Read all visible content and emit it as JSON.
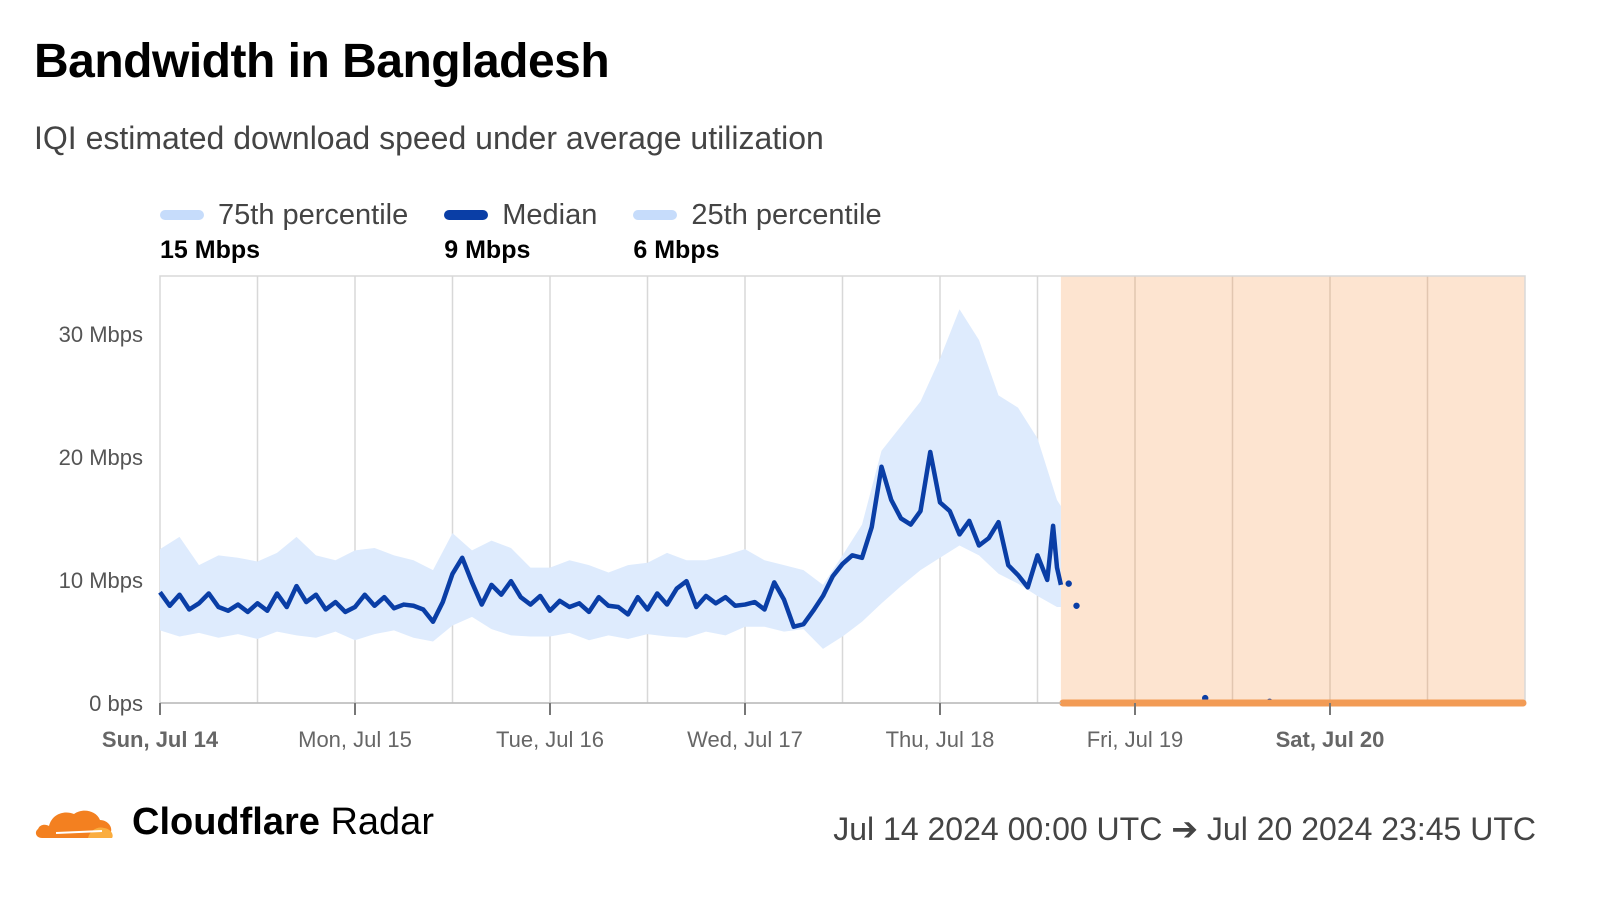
{
  "header": {
    "title": "Bandwidth in Bangladesh",
    "subtitle": "IQI estimated download speed under average utilization"
  },
  "legend": [
    {
      "label": "75th percentile",
      "value": "15 Mbps",
      "color": "#c6dcfb"
    },
    {
      "label": "Median",
      "value": "9 Mbps",
      "color": "#0a3ea6"
    },
    {
      "label": "25th percentile",
      "value": "6 Mbps",
      "color": "#c6dcfb"
    }
  ],
  "footer": {
    "brand_bold": "Cloudflare",
    "brand_regular": "Radar",
    "date_range": "Jul 14 2024 00:00 UTC ➔ Jul 20 2024 23:45 UTC"
  },
  "colors": {
    "median": "#0a3ea6",
    "band": "#deebfd",
    "outage_fill": "#fde4d0",
    "outage_line": "#f29b55",
    "grid": "#d8d8d8",
    "logo_orange": "#f38020"
  },
  "chart_data": {
    "type": "area",
    "x_unit": "days since Jul 14 2024 00:00 UTC",
    "y_unit": "Mbps",
    "ylim": [
      0,
      35
    ],
    "xlim": [
      0,
      7
    ],
    "y_ticks": [
      {
        "value": 0,
        "label": "0 bps"
      },
      {
        "value": 10,
        "label": "10 Mbps"
      },
      {
        "value": 20,
        "label": "20 Mbps"
      },
      {
        "value": 30,
        "label": "30 Mbps"
      }
    ],
    "x_ticks": [
      {
        "value": 0,
        "label": "Sun, Jul 14",
        "bold": true
      },
      {
        "value": 1,
        "label": "Mon, Jul 15",
        "bold": false
      },
      {
        "value": 2,
        "label": "Tue, Jul 16",
        "bold": false
      },
      {
        "value": 3,
        "label": "Wed, Jul 17",
        "bold": false
      },
      {
        "value": 4,
        "label": "Thu, Jul 18",
        "bold": false
      },
      {
        "value": 5,
        "label": "Fri, Jul 19",
        "bold": false
      },
      {
        "value": 6,
        "label": "Sat, Jul 20",
        "bold": true
      }
    ],
    "grid": true,
    "outage_region": [
      4.62,
      7.0
    ],
    "median_series": {
      "name": "Median",
      "x": [
        0,
        0.05,
        0.1,
        0.15,
        0.2,
        0.25,
        0.3,
        0.35,
        0.4,
        0.45,
        0.5,
        0.55,
        0.6,
        0.65,
        0.7,
        0.75,
        0.8,
        0.85,
        0.9,
        0.95,
        1.0,
        1.05,
        1.1,
        1.15,
        1.2,
        1.25,
        1.3,
        1.35,
        1.4,
        1.45,
        1.5,
        1.55,
        1.6,
        1.65,
        1.7,
        1.75,
        1.8,
        1.85,
        1.9,
        1.95,
        2.0,
        2.05,
        2.1,
        2.15,
        2.2,
        2.25,
        2.3,
        2.35,
        2.4,
        2.45,
        2.5,
        2.55,
        2.6,
        2.65,
        2.7,
        2.75,
        2.8,
        2.85,
        2.9,
        2.95,
        3.0,
        3.05,
        3.1,
        3.15,
        3.2,
        3.25,
        3.3,
        3.35,
        3.4,
        3.45,
        3.5,
        3.55,
        3.6,
        3.65,
        3.7,
        3.75,
        3.8,
        3.85,
        3.9,
        3.95,
        4.0,
        4.05,
        4.1,
        4.15,
        4.2,
        4.25,
        4.3,
        4.35,
        4.4,
        4.45,
        4.5,
        4.55,
        4.58,
        4.6,
        4.62
      ],
      "y": [
        9.0,
        7.9,
        8.8,
        7.6,
        8.1,
        8.9,
        7.8,
        7.5,
        8.0,
        7.4,
        8.1,
        7.5,
        8.9,
        7.8,
        9.5,
        8.2,
        8.8,
        7.6,
        8.2,
        7.4,
        7.8,
        8.8,
        7.9,
        8.6,
        7.7,
        8.0,
        7.9,
        7.6,
        6.6,
        8.2,
        10.5,
        11.8,
        9.8,
        8.0,
        9.6,
        8.8,
        9.9,
        8.6,
        8.0,
        8.7,
        7.5,
        8.3,
        7.8,
        8.1,
        7.4,
        8.6,
        7.9,
        7.8,
        7.2,
        8.6,
        7.6,
        8.9,
        8.0,
        9.3,
        9.9,
        7.8,
        8.7,
        8.1,
        8.6,
        7.9,
        8.0,
        8.2,
        7.6,
        9.8,
        8.4,
        6.2,
        6.4,
        7.5,
        8.7,
        10.3,
        11.3,
        12.0,
        11.8,
        14.3,
        19.2,
        16.5,
        15.0,
        14.5,
        15.6,
        20.4,
        16.3,
        15.6,
        13.7,
        14.8,
        12.8,
        13.4,
        14.7,
        11.2,
        10.4,
        9.4,
        12.0,
        10.0,
        14.4,
        11.0,
        9.6
      ],
      "scatter_points": [
        {
          "x": 4.66,
          "y": 9.7
        },
        {
          "x": 4.7,
          "y": 7.9
        },
        {
          "x": 5.36,
          "y": 0.4
        },
        {
          "x": 5.69,
          "y": 0.1
        }
      ]
    },
    "band_series": {
      "name": "25th–75th percentile",
      "x": [
        0,
        0.1,
        0.2,
        0.3,
        0.4,
        0.5,
        0.6,
        0.7,
        0.8,
        0.9,
        1.0,
        1.1,
        1.2,
        1.3,
        1.4,
        1.5,
        1.6,
        1.7,
        1.8,
        1.9,
        2.0,
        2.1,
        2.2,
        2.3,
        2.4,
        2.5,
        2.6,
        2.7,
        2.8,
        2.9,
        3.0,
        3.1,
        3.2,
        3.3,
        3.4,
        3.5,
        3.6,
        3.7,
        3.8,
        3.9,
        4.0,
        4.1,
        4.2,
        4.3,
        4.4,
        4.5,
        4.6,
        4.62
      ],
      "upper": [
        12.5,
        13.5,
        11.2,
        12.0,
        11.8,
        11.5,
        12.2,
        13.5,
        12.0,
        11.6,
        12.4,
        12.6,
        12.0,
        11.6,
        10.8,
        13.8,
        12.4,
        13.2,
        12.6,
        11.0,
        11.0,
        11.6,
        11.2,
        10.6,
        11.2,
        11.4,
        12.2,
        11.6,
        11.6,
        12.0,
        12.5,
        11.6,
        11.2,
        10.8,
        9.6,
        12.0,
        14.5,
        20.5,
        22.5,
        24.5,
        28.0,
        32.0,
        29.5,
        25.0,
        24.0,
        21.5,
        16.5,
        16.0
      ],
      "lower": [
        5.9,
        5.4,
        5.7,
        5.3,
        5.6,
        5.2,
        5.8,
        5.5,
        5.3,
        5.8,
        5.1,
        5.6,
        5.9,
        5.3,
        5.0,
        6.3,
        7.0,
        6.0,
        5.5,
        5.4,
        5.4,
        5.7,
        5.1,
        5.5,
        5.2,
        5.6,
        5.4,
        5.3,
        5.8,
        5.5,
        6.2,
        6.2,
        5.8,
        6.0,
        4.4,
        5.4,
        6.6,
        8.1,
        9.5,
        10.8,
        11.8,
        12.8,
        12.0,
        10.5,
        9.7,
        8.7,
        7.8,
        7.8
      ]
    }
  }
}
